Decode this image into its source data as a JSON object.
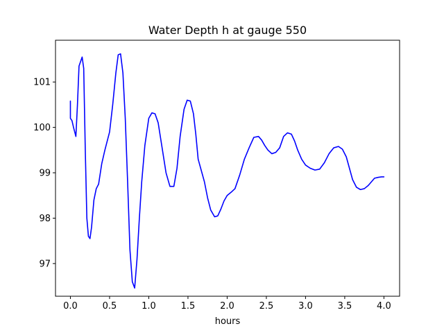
{
  "chart_data": {
    "type": "line",
    "title": "Water Depth h at gauge 550",
    "xlabel": "hours",
    "ylabel": "",
    "xlim": [
      -0.19,
      4.2
    ],
    "ylim": [
      96.28,
      101.92
    ],
    "xticks": [
      0.0,
      0.5,
      1.0,
      1.5,
      2.0,
      2.5,
      3.0,
      3.5,
      4.0
    ],
    "xtick_labels": [
      "0.0",
      "0.5",
      "1.0",
      "1.5",
      "2.0",
      "2.5",
      "3.0",
      "3.5",
      "4.0"
    ],
    "yticks": [
      97,
      98,
      99,
      100,
      101
    ],
    "ytick_labels": [
      "97",
      "98",
      "99",
      "100",
      "101"
    ],
    "grid": false,
    "series": [
      {
        "color": "#0000ff",
        "x": [
          0.0,
          0.0,
          0.02,
          0.04,
          0.07,
          0.09,
          0.11,
          0.13,
          0.15,
          0.17,
          0.19,
          0.21,
          0.23,
          0.25,
          0.27,
          0.3,
          0.33,
          0.36,
          0.4,
          0.44,
          0.5,
          0.54,
          0.58,
          0.61,
          0.64,
          0.67,
          0.7,
          0.73,
          0.76,
          0.79,
          0.82,
          0.85,
          0.88,
          0.91,
          0.95,
          1.0,
          1.04,
          1.08,
          1.12,
          1.17,
          1.22,
          1.27,
          1.32,
          1.36,
          1.4,
          1.45,
          1.49,
          1.53,
          1.57,
          1.6,
          1.63,
          1.67,
          1.71,
          1.75,
          1.79,
          1.84,
          1.88,
          1.92,
          1.96,
          2.0,
          2.05,
          2.1,
          2.16,
          2.22,
          2.28,
          2.34,
          2.4,
          2.44,
          2.48,
          2.52,
          2.57,
          2.62,
          2.67,
          2.72,
          2.77,
          2.82,
          2.86,
          2.9,
          2.95,
          3.0,
          3.06,
          3.12,
          3.18,
          3.24,
          3.3,
          3.36,
          3.42,
          3.47,
          3.52,
          3.56,
          3.6,
          3.65,
          3.7,
          3.75,
          3.8,
          3.84,
          3.88,
          3.93,
          3.97,
          4.0
        ],
        "y": [
          100.58,
          100.2,
          100.15,
          100.0,
          99.8,
          100.5,
          101.35,
          101.45,
          101.55,
          101.3,
          99.5,
          98.0,
          97.6,
          97.55,
          97.8,
          98.4,
          98.65,
          98.75,
          99.2,
          99.5,
          99.9,
          100.5,
          101.2,
          101.6,
          101.62,
          101.2,
          100.2,
          98.8,
          97.3,
          96.6,
          96.46,
          97.1,
          98.0,
          98.8,
          99.6,
          100.2,
          100.32,
          100.3,
          100.1,
          99.55,
          99.0,
          98.7,
          98.7,
          99.1,
          99.8,
          100.4,
          100.6,
          100.58,
          100.3,
          99.85,
          99.3,
          99.05,
          98.8,
          98.45,
          98.18,
          98.03,
          98.05,
          98.2,
          98.38,
          98.5,
          98.57,
          98.65,
          98.95,
          99.3,
          99.55,
          99.78,
          99.8,
          99.72,
          99.6,
          99.5,
          99.42,
          99.45,
          99.55,
          99.8,
          99.88,
          99.85,
          99.7,
          99.5,
          99.3,
          99.17,
          99.1,
          99.06,
          99.08,
          99.22,
          99.42,
          99.55,
          99.58,
          99.52,
          99.35,
          99.1,
          98.85,
          98.68,
          98.63,
          98.65,
          98.72,
          98.8,
          98.88,
          98.9,
          98.91,
          98.91
        ]
      }
    ]
  }
}
